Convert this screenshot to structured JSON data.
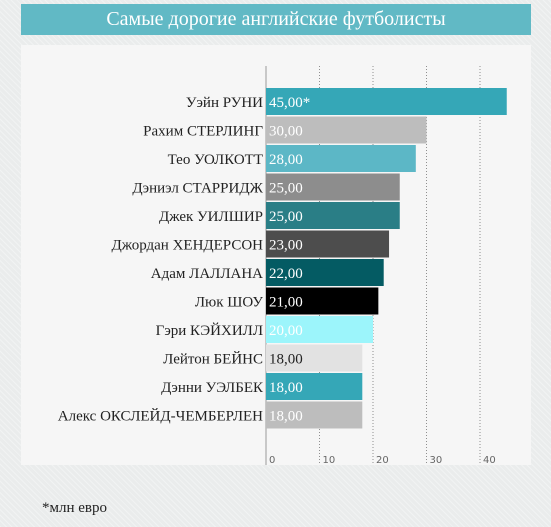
{
  "header": {
    "title": "Самые дорогие английские футболисты"
  },
  "footnote": "*млн евро",
  "chart_data": {
    "type": "bar",
    "orientation": "horizontal",
    "title": "Самые дорогие английские футболисты",
    "categories": [
      "Уэйн РУНИ",
      "Рахим СТЕРЛИНГ",
      "Тео УОЛКОТТ",
      "Дэниэл СТАРРИДЖ",
      "Джек УИЛШИР",
      "Джордан ХЕНДЕРСОН",
      "Адам ЛАЛЛАНА",
      "Люк ШОУ",
      "Гэри КЭЙХИЛЛ",
      "Лейтон БЕЙНС",
      "Дэнни УЭЛБЕК",
      "Алекс ОКСЛЕЙД-ЧЕМБЕРЛЕН"
    ],
    "values": [
      45,
      30,
      28,
      25,
      25,
      23,
      22,
      21,
      20,
      18,
      18,
      18
    ],
    "value_labels": [
      "45,00*",
      "30,00",
      "28,00",
      "25,00",
      "25,00",
      "23,00",
      "22,00",
      "21,00",
      "20,00",
      "18,00",
      "18,00",
      "18,00"
    ],
    "colors": [
      "#35a7b7",
      "#bdbdbd",
      "#5cb7c6",
      "#8d8d8d",
      "#2a7e86",
      "#4d4d4d",
      "#045b63",
      "#000000",
      "#9cf5fb",
      "#e2e2e2",
      "#35a7b7",
      "#bdbdbd"
    ],
    "label_colors": [
      "#ffffff",
      "#ffffff",
      "#ffffff",
      "#ffffff",
      "#ffffff",
      "#ffffff",
      "#ffffff",
      "#ffffff",
      "#ffffff",
      "#222222",
      "#ffffff",
      "#ffffff"
    ],
    "xlim": [
      0,
      45
    ],
    "xticks": [
      0,
      10,
      20,
      30,
      40
    ],
    "grid": true,
    "xlabel": "",
    "ylabel": ""
  }
}
